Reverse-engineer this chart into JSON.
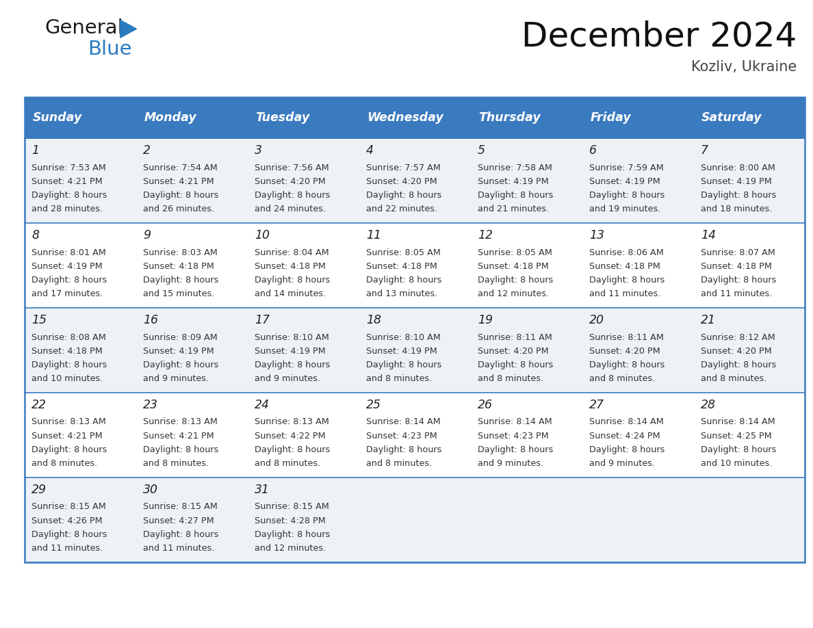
{
  "title": "December 2024",
  "subtitle": "Kozliv, Ukraine",
  "header_bg": "#3a7abf",
  "header_text": "#ffffff",
  "row_bg_even": "#eef2f7",
  "row_bg_odd": "#ffffff",
  "border_color": "#3a7abf",
  "day_headers": [
    "Sunday",
    "Monday",
    "Tuesday",
    "Wednesday",
    "Thursday",
    "Friday",
    "Saturday"
  ],
  "weeks": [
    [
      {
        "day": 1,
        "sunrise": "7:53 AM",
        "sunset": "4:21 PM",
        "daylight": "8 hours and 28 minutes."
      },
      {
        "day": 2,
        "sunrise": "7:54 AM",
        "sunset": "4:21 PM",
        "daylight": "8 hours and 26 minutes."
      },
      {
        "day": 3,
        "sunrise": "7:56 AM",
        "sunset": "4:20 PM",
        "daylight": "8 hours and 24 minutes."
      },
      {
        "day": 4,
        "sunrise": "7:57 AM",
        "sunset": "4:20 PM",
        "daylight": "8 hours and 22 minutes."
      },
      {
        "day": 5,
        "sunrise": "7:58 AM",
        "sunset": "4:19 PM",
        "daylight": "8 hours and 21 minutes."
      },
      {
        "day": 6,
        "sunrise": "7:59 AM",
        "sunset": "4:19 PM",
        "daylight": "8 hours and 19 minutes."
      },
      {
        "day": 7,
        "sunrise": "8:00 AM",
        "sunset": "4:19 PM",
        "daylight": "8 hours and 18 minutes."
      }
    ],
    [
      {
        "day": 8,
        "sunrise": "8:01 AM",
        "sunset": "4:19 PM",
        "daylight": "8 hours and 17 minutes."
      },
      {
        "day": 9,
        "sunrise": "8:03 AM",
        "sunset": "4:18 PM",
        "daylight": "8 hours and 15 minutes."
      },
      {
        "day": 10,
        "sunrise": "8:04 AM",
        "sunset": "4:18 PM",
        "daylight": "8 hours and 14 minutes."
      },
      {
        "day": 11,
        "sunrise": "8:05 AM",
        "sunset": "4:18 PM",
        "daylight": "8 hours and 13 minutes."
      },
      {
        "day": 12,
        "sunrise": "8:05 AM",
        "sunset": "4:18 PM",
        "daylight": "8 hours and 12 minutes."
      },
      {
        "day": 13,
        "sunrise": "8:06 AM",
        "sunset": "4:18 PM",
        "daylight": "8 hours and 11 minutes."
      },
      {
        "day": 14,
        "sunrise": "8:07 AM",
        "sunset": "4:18 PM",
        "daylight": "8 hours and 11 minutes."
      }
    ],
    [
      {
        "day": 15,
        "sunrise": "8:08 AM",
        "sunset": "4:18 PM",
        "daylight": "8 hours and 10 minutes."
      },
      {
        "day": 16,
        "sunrise": "8:09 AM",
        "sunset": "4:19 PM",
        "daylight": "8 hours and 9 minutes."
      },
      {
        "day": 17,
        "sunrise": "8:10 AM",
        "sunset": "4:19 PM",
        "daylight": "8 hours and 9 minutes."
      },
      {
        "day": 18,
        "sunrise": "8:10 AM",
        "sunset": "4:19 PM",
        "daylight": "8 hours and 8 minutes."
      },
      {
        "day": 19,
        "sunrise": "8:11 AM",
        "sunset": "4:20 PM",
        "daylight": "8 hours and 8 minutes."
      },
      {
        "day": 20,
        "sunrise": "8:11 AM",
        "sunset": "4:20 PM",
        "daylight": "8 hours and 8 minutes."
      },
      {
        "day": 21,
        "sunrise": "8:12 AM",
        "sunset": "4:20 PM",
        "daylight": "8 hours and 8 minutes."
      }
    ],
    [
      {
        "day": 22,
        "sunrise": "8:13 AM",
        "sunset": "4:21 PM",
        "daylight": "8 hours and 8 minutes."
      },
      {
        "day": 23,
        "sunrise": "8:13 AM",
        "sunset": "4:21 PM",
        "daylight": "8 hours and 8 minutes."
      },
      {
        "day": 24,
        "sunrise": "8:13 AM",
        "sunset": "4:22 PM",
        "daylight": "8 hours and 8 minutes."
      },
      {
        "day": 25,
        "sunrise": "8:14 AM",
        "sunset": "4:23 PM",
        "daylight": "8 hours and 8 minutes."
      },
      {
        "day": 26,
        "sunrise": "8:14 AM",
        "sunset": "4:23 PM",
        "daylight": "8 hours and 9 minutes."
      },
      {
        "day": 27,
        "sunrise": "8:14 AM",
        "sunset": "4:24 PM",
        "daylight": "8 hours and 9 minutes."
      },
      {
        "day": 28,
        "sunrise": "8:14 AM",
        "sunset": "4:25 PM",
        "daylight": "8 hours and 10 minutes."
      }
    ],
    [
      {
        "day": 29,
        "sunrise": "8:15 AM",
        "sunset": "4:26 PM",
        "daylight": "8 hours and 11 minutes."
      },
      {
        "day": 30,
        "sunrise": "8:15 AM",
        "sunset": "4:27 PM",
        "daylight": "8 hours and 11 minutes."
      },
      {
        "day": 31,
        "sunrise": "8:15 AM",
        "sunset": "4:28 PM",
        "daylight": "8 hours and 12 minutes."
      },
      null,
      null,
      null,
      null
    ]
  ],
  "logo_general_color": "#1a1a1a",
  "logo_blue_color": "#2a7abf",
  "logo_triangle_color": "#2a7abf"
}
